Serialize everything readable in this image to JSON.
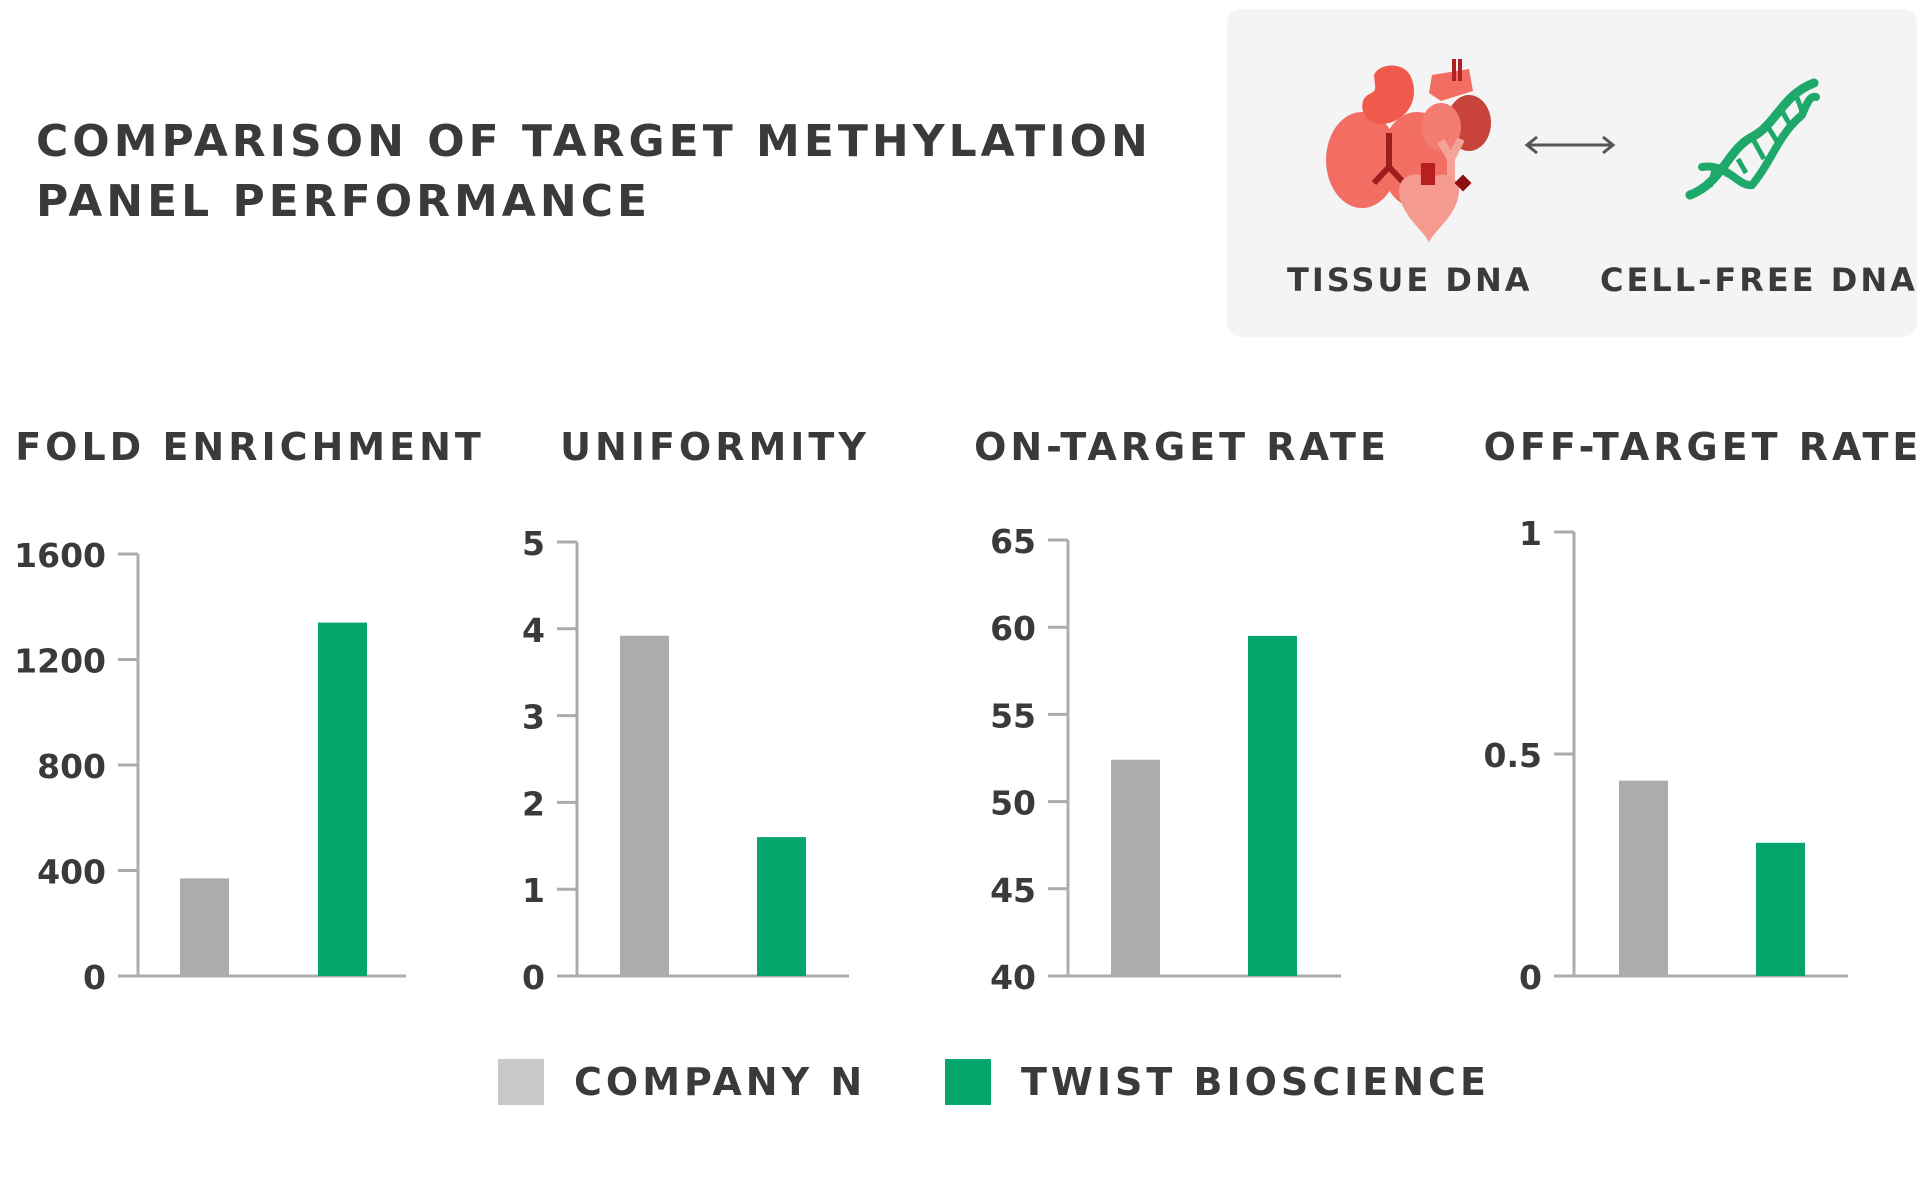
{
  "title": {
    "line1": "COMPARISON OF TARGET METHYLATION",
    "line2": "PANEL PERFORMANCE"
  },
  "info_card": {
    "tissue_label": "TISSUE DNA",
    "cfdna_label": "CELL-FREE DNA",
    "organs_icon": "organs-icon",
    "arrow_icon": "double-arrow-icon",
    "dna_icon": "dna-helix-icon"
  },
  "colors": {
    "company_n": "#acacac",
    "twist": "#05a56b",
    "axis": "#acacac",
    "text": "#3a3a3a",
    "legend_gray": "#c8c8c8"
  },
  "legend": {
    "company_n": "COMPANY N",
    "twist": "TWIST BIOSCIENCE"
  },
  "chart_data": [
    {
      "type": "bar",
      "title": "FOLD ENRICHMENT",
      "categories": [
        "COMPANY N",
        "TWIST BIOSCIENCE"
      ],
      "values": [
        370,
        1340
      ],
      "ylim": [
        0,
        1600
      ],
      "ticks": [
        0,
        400,
        800,
        1200,
        1600
      ],
      "tick_labels": [
        "0",
        "400",
        "800",
        "1200",
        "1600"
      ]
    },
    {
      "type": "bar",
      "title": "UNIFORMITY",
      "categories": [
        "COMPANY N",
        "TWIST BIOSCIENCE"
      ],
      "values": [
        3.92,
        1.6
      ],
      "ylim": [
        0,
        5
      ],
      "ticks": [
        0,
        1,
        2,
        3,
        4,
        5
      ],
      "tick_labels": [
        "0",
        "1",
        "2",
        "3",
        "4",
        "5"
      ]
    },
    {
      "type": "bar",
      "title": "ON-TARGET RATE",
      "categories": [
        "COMPANY N",
        "TWIST BIOSCIENCE"
      ],
      "values": [
        52.4,
        59.5
      ],
      "ylim": [
        40,
        65
      ],
      "ticks": [
        40,
        45,
        50,
        55,
        60,
        65
      ],
      "tick_labels": [
        "40",
        "45",
        "50",
        "55",
        "60",
        "65"
      ]
    },
    {
      "type": "bar",
      "title": "OFF-TARGET RATE",
      "categories": [
        "COMPANY N",
        "TWIST BIOSCIENCE"
      ],
      "values": [
        0.44,
        0.3
      ],
      "ylim": [
        0,
        1
      ],
      "ticks": [
        0,
        0.5,
        1
      ],
      "tick_labels": [
        "0",
        "0.5",
        "1"
      ]
    }
  ]
}
